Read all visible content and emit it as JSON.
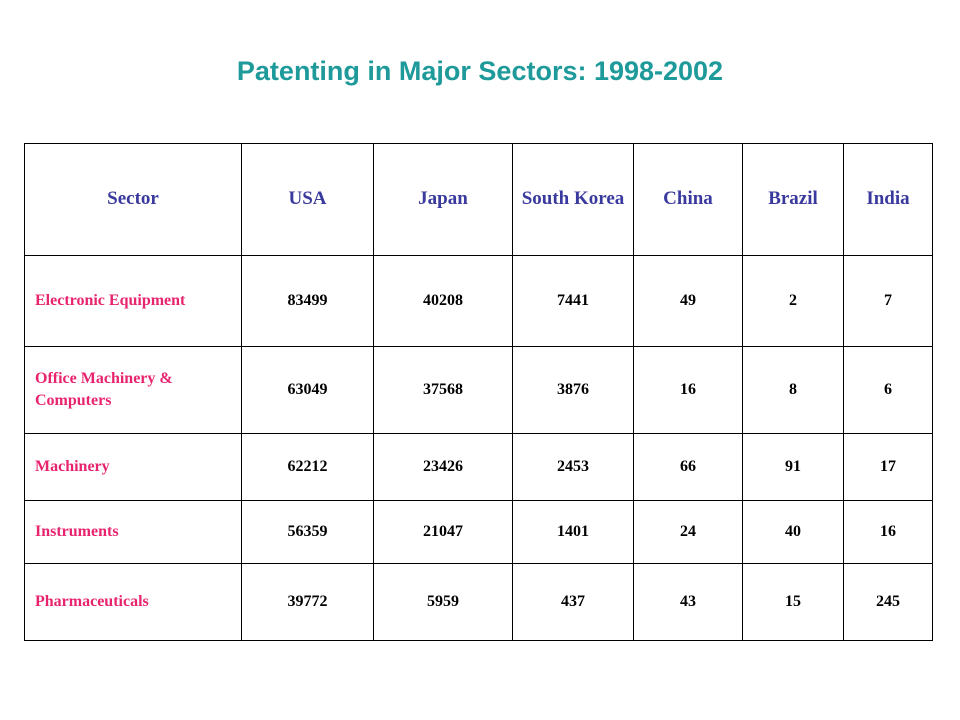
{
  "title": "Patenting in Major Sectors: 1998-2002",
  "colors": {
    "title": "#1f9a9a",
    "header_text": "#3a3a9e",
    "sector_text": "#e8246e",
    "value_text": "#000000",
    "border": "#000000"
  },
  "table": {
    "headers": [
      "Sector",
      "USA",
      "Japan",
      "South Korea",
      "China",
      "Brazil",
      "India"
    ],
    "rows": [
      {
        "sector": "Electronic Equipment",
        "values": [
          "83499",
          "40208",
          "7441",
          "49",
          "2",
          "7"
        ]
      },
      {
        "sector": "Office Machinery & Computers",
        "values": [
          "63049",
          "37568",
          "3876",
          "16",
          "8",
          "6"
        ]
      },
      {
        "sector": "Machinery",
        "values": [
          "62212",
          "23426",
          "2453",
          "66",
          "91",
          "17"
        ]
      },
      {
        "sector": "Instruments",
        "values": [
          "56359",
          "21047",
          "1401",
          "24",
          "40",
          "16"
        ]
      },
      {
        "sector": "Pharmaceuticals",
        "values": [
          "39772",
          "5959",
          "437",
          "43",
          "15",
          "245"
        ]
      }
    ]
  }
}
